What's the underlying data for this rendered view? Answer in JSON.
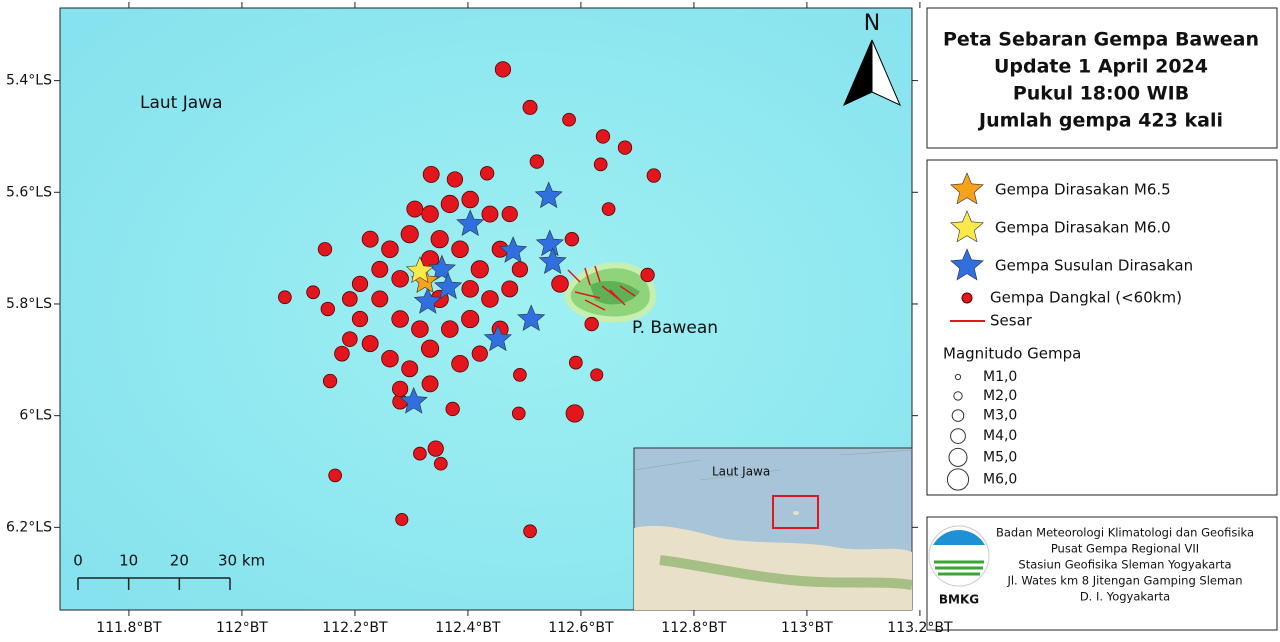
{
  "map": {
    "xlim": [
      111.678,
      113.186
    ],
    "ylim": [
      -6.348,
      -5.27
    ],
    "xticks": [
      {
        "value": 111.8,
        "label": "111.8°BT"
      },
      {
        "value": 112,
        "label": "112°BT"
      },
      {
        "value": 112.2,
        "label": "112.2°BT"
      },
      {
        "value": 112.4,
        "label": "112.4°BT"
      },
      {
        "value": 112.6,
        "label": "112.6°BT"
      },
      {
        "value": 112.8,
        "label": "112.8°BT"
      },
      {
        "value": 113,
        "label": "113°BT"
      },
      {
        "value": 113.2,
        "label": "113.2°BT"
      }
    ],
    "yticks": [
      {
        "value": -5.4,
        "label": "5.4°LS"
      },
      {
        "value": -5.6,
        "label": "5.6°LS"
      },
      {
        "value": -5.8,
        "label": "5.8°LS"
      },
      {
        "value": -6,
        "label": "6°LS"
      },
      {
        "value": -6.2,
        "label": "6.2°LS"
      }
    ],
    "sea_label": "Laut Jawa",
    "island_label": "P. Bawean",
    "north": "N",
    "scale_ticks": [
      0,
      10,
      20,
      {
        "value": 30,
        "label": "30 km"
      }
    ],
    "events": {
      "name": "Gempa Dangkal (<60km)",
      "color": "#e3161e",
      "lon": [
        112.462,
        112.51,
        112.579,
        112.639,
        112.678,
        112.635,
        112.729,
        112.522,
        112.434,
        112.335,
        112.649,
        112.147,
        112.076,
        112.126,
        112.152,
        112.177,
        112.156,
        112.165,
        112.283,
        112.51,
        112.315,
        112.343,
        112.352,
        112.28,
        112.373,
        112.49,
        112.589,
        112.492,
        112.591,
        112.628,
        112.619,
        112.718,
        112.563,
        112.584,
        112.227,
        112.262,
        112.297,
        112.333,
        112.368,
        112.404,
        112.439,
        112.474,
        112.333,
        112.28,
        112.244,
        112.209,
        112.227,
        112.262,
        112.297,
        112.333,
        112.368,
        112.404,
        112.439,
        112.474,
        112.492,
        112.421,
        112.386,
        112.35,
        112.28,
        112.315,
        112.35,
        112.244,
        112.209,
        112.191,
        112.28,
        112.333,
        112.386,
        112.421,
        112.457,
        112.191,
        112.404,
        112.457,
        112.306,
        112.377
      ],
      "lat": [
        -5.38,
        -5.448,
        -5.47,
        -5.5,
        -5.52,
        -5.55,
        -5.57,
        -5.545,
        -5.566,
        -5.568,
        -5.63,
        -5.702,
        -5.788,
        -5.779,
        -5.809,
        -5.889,
        -5.938,
        -6.107,
        -6.186,
        -6.207,
        -6.068,
        -6.059,
        -6.086,
        -5.975,
        -5.988,
        -5.996,
        -5.996,
        -5.927,
        -5.905,
        -5.927,
        -5.836,
        -5.748,
        -5.764,
        -5.684,
        -5.684,
        -5.702,
        -5.675,
        -5.639,
        -5.621,
        -5.613,
        -5.639,
        -5.639,
        -5.72,
        -5.755,
        -5.791,
        -5.827,
        -5.871,
        -5.898,
        -5.916,
        -5.88,
        -5.845,
        -5.827,
        -5.791,
        -5.773,
        -5.738,
        -5.738,
        -5.702,
        -5.684,
        -5.827,
        -5.845,
        -5.791,
        -5.738,
        -5.764,
        -5.791,
        -5.952,
        -5.943,
        -5.907,
        -5.889,
        -5.845,
        -5.863,
        -5.773,
        -5.702,
        -5.63,
        -5.577
      ],
      "mag": [
        4.2,
        3.8,
        3.4,
        3.6,
        3.6,
        3.4,
        3.6,
        3.6,
        3.6,
        4.4,
        3.4,
        3.6,
        3.4,
        3.4,
        3.6,
        4.0,
        3.6,
        3.4,
        3.2,
        3.4,
        3.4,
        4.2,
        3.4,
        4.0,
        3.6,
        3.4,
        4.8,
        3.4,
        3.4,
        3.2,
        3.6,
        3.6,
        4.6,
        3.6,
        4.4,
        4.6,
        4.8,
        4.6,
        4.8,
        4.6,
        4.4,
        4.2,
        4.8,
        4.6,
        4.4,
        4.2,
        4.4,
        4.6,
        4.4,
        4.8,
        4.6,
        4.8,
        4.6,
        4.4,
        4.2,
        4.8,
        4.6,
        4.8,
        4.6,
        4.6,
        4.8,
        4.4,
        4.2,
        4.0,
        4.2,
        4.4,
        4.6,
        4.2,
        4.4,
        4.0,
        4.6,
        4.4,
        4.4,
        4.2
      ]
    },
    "stars": [
      {
        "name": "Gempa Dirasakan M6.5",
        "color": "#f7a21b",
        "lon": [
          112.324
        ],
        "lat": [
          -5.759
        ]
      },
      {
        "name": "Gempa Dirasakan M6.0",
        "color": "#fbe84a",
        "lon": [
          112.315
        ],
        "lat": [
          -5.741
        ]
      },
      {
        "name": "Gempa Susulan Dirasakan",
        "color": "#2f6fe0",
        "lon": [
          112.543,
          112.404,
          112.545,
          112.48,
          112.55,
          112.354,
          112.365,
          112.329,
          112.512,
          112.453,
          112.304
        ],
        "lat": [
          -5.607,
          -5.657,
          -5.693,
          -5.705,
          -5.725,
          -5.738,
          -5.77,
          -5.796,
          -5.827,
          -5.863,
          -5.975
        ]
      }
    ],
    "fault": {
      "name": "Sesar",
      "color": "#e3161e"
    }
  },
  "title": [
    "Peta Sebaran Gempa Bawean",
    "Update 1 April 2024",
    "Pukul 18:00 WIB",
    "Jumlah gempa 423 kali"
  ],
  "legend": {
    "magnitude_title": "Magnitudo Gempa",
    "sizes": [
      {
        "value": 1,
        "label": "M1,0"
      },
      {
        "value": 2,
        "label": "M2,0"
      },
      {
        "value": 3,
        "label": "M3,0"
      },
      {
        "value": 4,
        "label": "M4,0"
      },
      {
        "value": 5,
        "label": "M5,0"
      },
      {
        "value": 6,
        "label": "M6,0"
      }
    ]
  },
  "inset": {
    "label": "Laut Jawa"
  },
  "agency": {
    "lines": [
      "Badan Meteorologi Klimatologi dan Geofisika",
      "Pusat Gempa Regional VII",
      "Stasiun Geofisika Sleman Yogyakarta",
      "Jl. Wates km 8 Jitengan Gamping Sleman",
      "D. I. Yogyakarta"
    ],
    "logo": "BMKG"
  }
}
